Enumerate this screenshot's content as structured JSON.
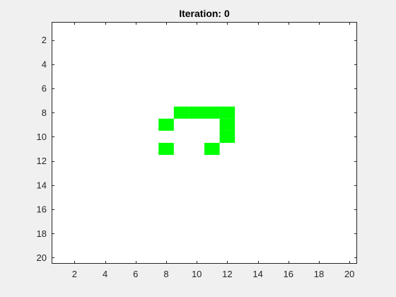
{
  "chart_data": {
    "type": "heatmap",
    "title": "Iteration: 0",
    "xlabel": "",
    "ylabel": "",
    "xlim": [
      0.5,
      20.5
    ],
    "ylim": [
      0.5,
      20.5
    ],
    "y_reversed": true,
    "x_ticks": [
      2,
      4,
      6,
      8,
      10,
      12,
      14,
      16,
      18,
      20
    ],
    "y_ticks": [
      2,
      4,
      6,
      8,
      10,
      12,
      14,
      16,
      18,
      20
    ],
    "x_tick_labels": [
      "2",
      "4",
      "6",
      "8",
      "10",
      "12",
      "14",
      "16",
      "18",
      "20"
    ],
    "y_tick_labels": [
      "2",
      "4",
      "6",
      "8",
      "10",
      "12",
      "14",
      "16",
      "18",
      "20"
    ],
    "grid": false,
    "grid_size": [
      20,
      20
    ],
    "cell_color": "#00ff00",
    "background_color": "#ffffff",
    "live_cells": [
      {
        "row": 8,
        "col": 9
      },
      {
        "row": 8,
        "col": 10
      },
      {
        "row": 8,
        "col": 11
      },
      {
        "row": 8,
        "col": 12
      },
      {
        "row": 9,
        "col": 8
      },
      {
        "row": 9,
        "col": 12
      },
      {
        "row": 10,
        "col": 12
      },
      {
        "row": 11,
        "col": 8
      },
      {
        "row": 11,
        "col": 11
      }
    ]
  }
}
